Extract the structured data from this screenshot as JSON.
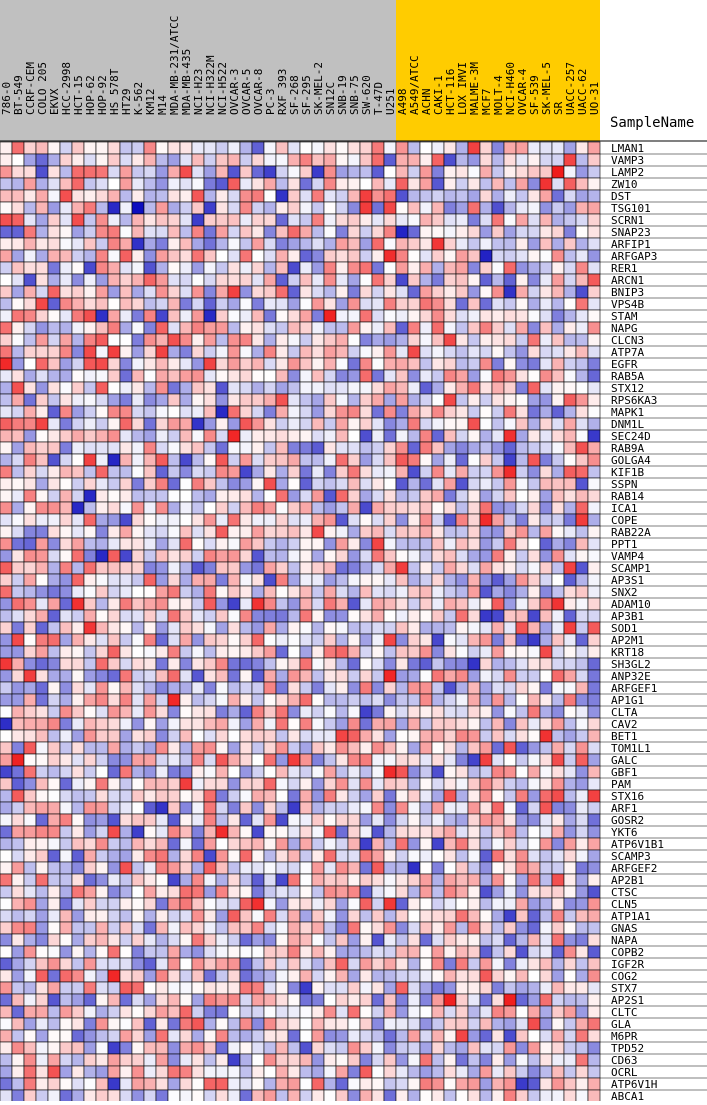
{
  "chart_data": {
    "type": "heatmap",
    "title": "",
    "xlabel": "",
    "ylabel": "SampleName",
    "legend": "none",
    "grid": true,
    "colors": {
      "low": "#0000bb",
      "mid": "#ffffff",
      "high": "#ee0000",
      "header_group_a": "#c0c0c0",
      "header_group_b": "#ffcc00",
      "cell_border": "#000000"
    },
    "columns": [
      "786-0",
      "BT-549",
      "CCRF-CEM",
      "COLO 205",
      "EKVX",
      "HCC-2998",
      "HCT-15",
      "HOP-62",
      "HOP-92",
      "HS 578T",
      "HT29",
      "K-562",
      "KM12",
      "M14",
      "MDA-MB-231/ATCC",
      "MDA-MB-435",
      "NCI-H23",
      "NCI-H322M",
      "NCI-H522",
      "OVCAR-3",
      "OVCAR-5",
      "OVCAR-8",
      "PC-3",
      "RXF 393",
      "SF-268",
      "SF-295",
      "SK-MEL-2",
      "SN12C",
      "SNB-19",
      "SNB-75",
      "SW-620",
      "T-47D",
      "U251",
      "A498",
      "A549/ATCC",
      "ACHN",
      "CAKI-1",
      "HCT-116",
      "LOX IMVI",
      "MALME-3M",
      "MCF7",
      "MOLT-4",
      "NCI-H460",
      "OVCAR-4",
      "SF-539",
      "SK-MEL-5",
      "SR",
      "UACC-257",
      "UACC-62",
      "UO-31"
    ],
    "column_groups": [
      {
        "start": 0,
        "end": 32,
        "color": "#c0c0c0"
      },
      {
        "start": 33,
        "end": 49,
        "color": "#ffcc00"
      }
    ],
    "rows": [
      "LMAN1",
      "VAMP3",
      "LAMP2",
      "ZW10",
      "DST",
      "TSG101",
      "SCRN1",
      "SNAP23",
      "ARFIP1",
      "ARFGAP3",
      "RER1",
      "ARCN1",
      "BNIP3",
      "VPS4B",
      "STAM",
      "NAPG",
      "CLCN3",
      "ATP7A",
      "EGFR",
      "RAB5A",
      "STX12",
      "RPS6KA3",
      "MAPK1",
      "DNM1L",
      "SEC24D",
      "RAB9A",
      "GOLGA4",
      "KIF1B",
      "SSPN",
      "RAB14",
      "ICA1",
      "COPE",
      "RAB22A",
      "PPT1",
      "VAMP4",
      "SCAMP1",
      "AP3S1",
      "SNX2",
      "ADAM10",
      "AP3B1",
      "SOD1",
      "AP2M1",
      "KRT18",
      "SH3GL2",
      "ANP32E",
      "ARFGEF1",
      "AP1G1",
      "CLTA",
      "CAV2",
      "BET1",
      "TOM1L1",
      "GALC",
      "GBF1",
      "PAM",
      "STX16",
      "ARF1",
      "GOSR2",
      "YKT6",
      "ATP6V1B1",
      "SCAMP3",
      "ARFGEF2",
      "AP2B1",
      "CTSC",
      "CLN5",
      "ATP1A1",
      "GNAS",
      "NAPA",
      "COPB2",
      "IGF2R",
      "COG2",
      "STX7",
      "AP2S1",
      "CLTC",
      "GLA",
      "M6PR",
      "TPD52",
      "CD63",
      "OCRL",
      "ATP6V1H",
      "ABCA1"
    ],
    "value_range": [
      -3,
      3
    ],
    "values_note": "",
    "values": []
  }
}
